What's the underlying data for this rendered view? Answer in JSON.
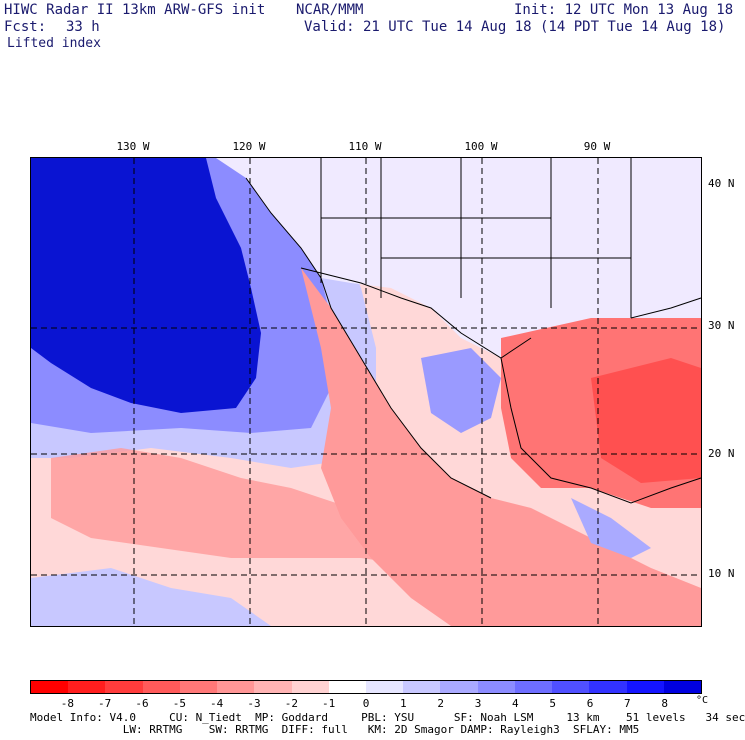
{
  "header": {
    "model": "HIWC Radar II 13km ARW-GFS init",
    "org": "NCAR/MMM",
    "init": "Init: 12 UTC Mon 13 Aug 18",
    "fcst_label": "Fcst:",
    "fcst_value": "33 h",
    "valid": "Valid: 21 UTC Tue 14 Aug 18 (14 PDT Tue 14 Aug 18)",
    "field": "Lifted index"
  },
  "map": {
    "lon_labels": [
      "130 W",
      "120 W",
      "110 W",
      "100 W",
      "90 W"
    ],
    "lat_labels": [
      "40 N",
      "30 N",
      "20 N",
      "10 N"
    ],
    "ocean_color": "#0a14d2",
    "land_color": "#ff8e8e"
  },
  "colorbar": {
    "ticks": [
      "-8",
      "-7",
      "-6",
      "-5",
      "-4",
      "-3",
      "-2",
      "-1",
      "0",
      "1",
      "2",
      "3",
      "4",
      "5",
      "6",
      "7",
      "8"
    ],
    "unit": "°C",
    "colors": [
      "#ff0000",
      "#ff1e1e",
      "#ff3c3c",
      "#ff5a5a",
      "#ff7878",
      "#ff9696",
      "#ffb4b4",
      "#ffd2d2",
      "#ffffff",
      "#e6e6ff",
      "#c8c8ff",
      "#aaaaff",
      "#8c8cff",
      "#6e6eff",
      "#5050ff",
      "#3232ff",
      "#1414ff",
      "#0000e0"
    ]
  },
  "footer": {
    "line1": "Model Info: V4.0     CU: N_Tiedt  MP: Goddard     PBL: YSU      SF: Noah LSM     13 km    51 levels   34 sec",
    "line2": "              LW: RRTMG    SW: RRTMG  DIFF: full   KM: 2D Smagor DAMP: Rayleigh3  SFLAY: MM5"
  }
}
